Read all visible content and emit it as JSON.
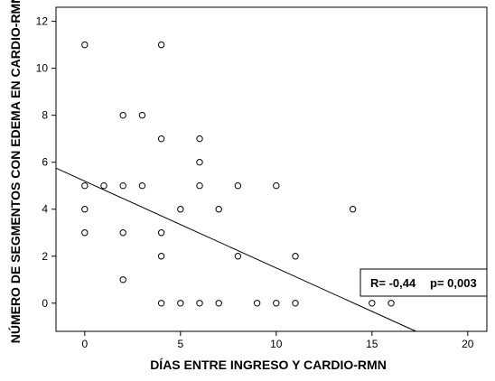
{
  "chart_data": {
    "type": "scatter",
    "title": "",
    "xlabel": "DÍAS ENTRE INGRESO Y CARDIO-RMN",
    "ylabel": "NÚMERO DE SEGMENTOS CON EDEMA EN CARDIO-RMN",
    "xlim": [
      -1.5,
      21
    ],
    "ylim": [
      -1.2,
      12.6
    ],
    "xticks": [
      0,
      5,
      10,
      15,
      20
    ],
    "yticks": [
      0,
      2,
      4,
      6,
      8,
      10,
      12
    ],
    "grid": false,
    "background": "#ffffff",
    "marker_color": "#000000",
    "points": [
      {
        "x": 0,
        "y": 11
      },
      {
        "x": 0,
        "y": 5
      },
      {
        "x": 0,
        "y": 4
      },
      {
        "x": 0,
        "y": 3
      },
      {
        "x": 1,
        "y": 5
      },
      {
        "x": 2,
        "y": 8
      },
      {
        "x": 2,
        "y": 5
      },
      {
        "x": 2,
        "y": 3
      },
      {
        "x": 2,
        "y": 1
      },
      {
        "x": 3,
        "y": 8
      },
      {
        "x": 3,
        "y": 5
      },
      {
        "x": 4,
        "y": 11
      },
      {
        "x": 4,
        "y": 7
      },
      {
        "x": 4,
        "y": 3
      },
      {
        "x": 4,
        "y": 2
      },
      {
        "x": 4,
        "y": 0
      },
      {
        "x": 5,
        "y": 4
      },
      {
        "x": 5,
        "y": 0
      },
      {
        "x": 6,
        "y": 7
      },
      {
        "x": 6,
        "y": 6
      },
      {
        "x": 6,
        "y": 5
      },
      {
        "x": 6,
        "y": 0
      },
      {
        "x": 7,
        "y": 4
      },
      {
        "x": 7,
        "y": 0
      },
      {
        "x": 8,
        "y": 5
      },
      {
        "x": 8,
        "y": 2
      },
      {
        "x": 9,
        "y": 0
      },
      {
        "x": 10,
        "y": 5
      },
      {
        "x": 10,
        "y": 0
      },
      {
        "x": 11,
        "y": 2
      },
      {
        "x": 11,
        "y": 0
      },
      {
        "x": 14,
        "y": 4
      },
      {
        "x": 15,
        "y": 0
      },
      {
        "x": 16,
        "y": 0
      }
    ],
    "regression_line": {
      "x1": -1.5,
      "y1": 5.75,
      "x2": 17.3,
      "y2": -1.2
    },
    "annotation": {
      "r_text": "R= -0,44",
      "p_text": "p= 0,003",
      "position": "bottom-right"
    }
  }
}
